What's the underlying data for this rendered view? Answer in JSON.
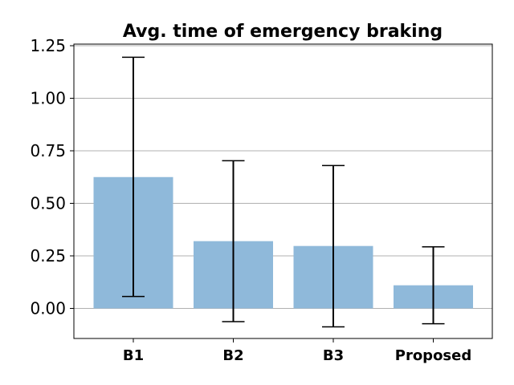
{
  "chart_data": {
    "type": "bar",
    "title": "Avg. time of emergency braking",
    "xlabel": "",
    "ylabel": "",
    "categories": [
      "B1",
      "B2",
      "B3",
      "Proposed"
    ],
    "values": [
      0.625,
      0.32,
      0.297,
      0.11
    ],
    "error_low": [
      0.057,
      -0.063,
      -0.088,
      -0.073
    ],
    "error_high": [
      1.195,
      0.703,
      0.68,
      0.293
    ],
    "ylim": [
      -0.15,
      1.26
    ],
    "yticks": [
      0.0,
      0.25,
      0.5,
      0.75,
      1.0,
      1.25
    ],
    "ytick_labels": [
      "0.00",
      "0.25",
      "0.50",
      "0.75",
      "1.00",
      "1.25"
    ],
    "grid": "horizontal",
    "bar_color": "#8fb9da",
    "error_color": "#000000"
  }
}
